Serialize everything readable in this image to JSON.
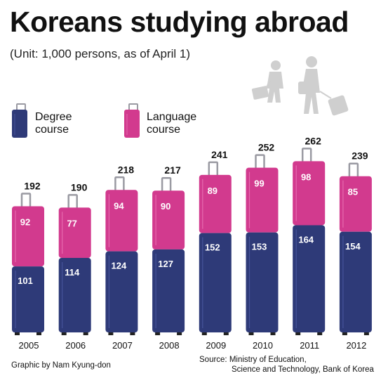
{
  "title": "Koreans studying abroad",
  "subtitle": "(Unit: 1,000 persons, as of April 1)",
  "legend": {
    "degree": [
      "Degree",
      "course"
    ],
    "language": [
      "Language",
      "course"
    ]
  },
  "credit": "Graphic by Nam Kyung-don",
  "source": [
    "Source: Ministry of Education,",
    "Science and Technology, Bank of Korea"
  ],
  "colors": {
    "degree": "#2e3a78",
    "language": "#d23a8e",
    "handle": "#9a9aa2",
    "silhouette": "#cfcfcf"
  },
  "icons": [
    "degree-suitcase-icon",
    "language-suitcase-icon",
    "traveler-man-icon",
    "traveler-woman-icon"
  ],
  "chart_data": {
    "type": "bar",
    "stacked": true,
    "categories": [
      "2005",
      "2006",
      "2007",
      "2008",
      "2009",
      "2010",
      "2011",
      "2012"
    ],
    "series": [
      {
        "name": "Degree course",
        "values": [
          101,
          114,
          124,
          127,
          152,
          153,
          164,
          154
        ]
      },
      {
        "name": "Language course",
        "values": [
          92,
          77,
          94,
          90,
          89,
          99,
          98,
          85
        ]
      }
    ],
    "totals": [
      192,
      190,
      218,
      217,
      241,
      252,
      262,
      239
    ],
    "title": "Koreans studying abroad",
    "xlabel": "",
    "ylabel": "",
    "grid": false
  }
}
